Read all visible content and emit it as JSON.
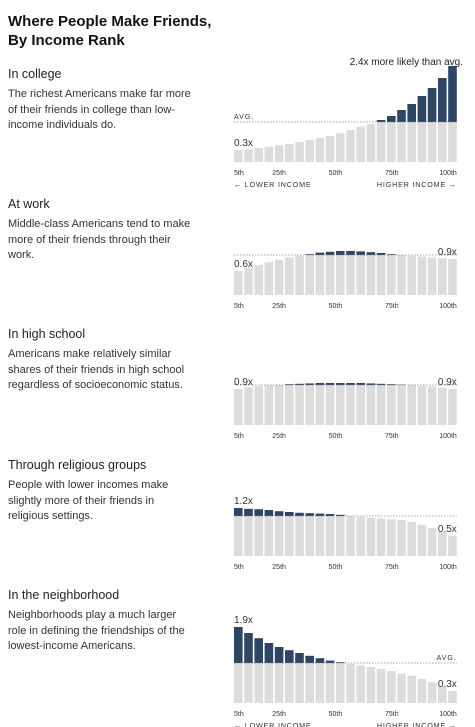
{
  "title_line1": "Where People Make Friends,",
  "title_line2": "By Income Rank",
  "top_annotation": "2.4x more likely than avg.",
  "colors": {
    "dark": "#2e4566",
    "light": "#dcdcdc",
    "dots": "#888888"
  },
  "x_axis": {
    "ticks": [
      {
        "pct": 5,
        "label": "5th"
      },
      {
        "pct": 25,
        "label": "25th"
      },
      {
        "pct": 50,
        "label": "50th"
      },
      {
        "pct": 75,
        "label": "75th"
      },
      {
        "pct": 100,
        "label": "100th"
      }
    ],
    "lower_label": "LOWER INCOME",
    "higher_label": "HIGHER INCOME",
    "left_arrow": "←",
    "right_arrow": "→"
  },
  "avg_label": "AVG.",
  "chart_data": [
    {
      "type": "bar",
      "title": "In college",
      "description": "The richest Americans make far more of their friends in college than low-income individuals do.",
      "x_unit": "income percentile",
      "ylabel": "ratio to average",
      "avg_line": 1,
      "show_avg_label": true,
      "show_bottom_labels": true,
      "annotations": [
        {
          "text": "0.3x",
          "position": "left"
        }
      ],
      "values": [
        0.3,
        0.32,
        0.35,
        0.38,
        0.42,
        0.45,
        0.5,
        0.55,
        0.6,
        0.65,
        0.72,
        0.8,
        0.88,
        0.95,
        1.05,
        1.15,
        1.3,
        1.45,
        1.65,
        1.85,
        2.1,
        2.4
      ]
    },
    {
      "type": "bar",
      "title": "At work",
      "description": "Middle-class Americans tend to make more of their friends through their work.",
      "x_unit": "income percentile",
      "ylabel": "ratio to average",
      "avg_line": 1,
      "show_avg_label": false,
      "show_bottom_labels": false,
      "annotations": [
        {
          "text": "0.6x",
          "position": "left"
        },
        {
          "text": "0.9x",
          "position": "right"
        }
      ],
      "values": [
        0.6,
        0.68,
        0.75,
        0.82,
        0.88,
        0.94,
        0.98,
        1.02,
        1.06,
        1.08,
        1.1,
        1.1,
        1.09,
        1.07,
        1.05,
        1.02,
        1.0,
        0.98,
        0.96,
        0.94,
        0.92,
        0.9
      ]
    },
    {
      "type": "bar",
      "title": "In high school",
      "description": "Americans make relatively similar shares of their friends in high school regardless of socioeconomic status.",
      "x_unit": "income percentile",
      "ylabel": "ratio to average",
      "avg_line": 1,
      "show_avg_label": false,
      "show_bottom_labels": false,
      "annotations": [
        {
          "text": "0.9x",
          "position": "left"
        },
        {
          "text": "0.9x",
          "position": "right"
        }
      ],
      "values": [
        0.9,
        0.94,
        0.97,
        0.99,
        1.0,
        1.02,
        1.03,
        1.04,
        1.05,
        1.05,
        1.05,
        1.05,
        1.05,
        1.04,
        1.03,
        1.02,
        1.01,
        1.0,
        0.98,
        0.96,
        0.93,
        0.9
      ]
    },
    {
      "type": "bar",
      "title": "Through religious groups",
      "description": "People with lower incomes make slightly more of their friends in religious settings.",
      "x_unit": "income percentile",
      "ylabel": "ratio to average",
      "avg_line": 1,
      "show_avg_label": false,
      "show_bottom_labels": false,
      "annotations": [
        {
          "text": "1.2x",
          "position": "left"
        },
        {
          "text": "0.5x",
          "position": "right"
        }
      ],
      "values": [
        1.2,
        1.18,
        1.17,
        1.15,
        1.12,
        1.1,
        1.08,
        1.07,
        1.06,
        1.05,
        1.03,
        1.0,
        0.98,
        0.96,
        0.94,
        0.92,
        0.9,
        0.85,
        0.78,
        0.7,
        0.6,
        0.5
      ]
    },
    {
      "type": "bar",
      "title": "In the neighborhood",
      "description": "Neighborhoods play a much larger role in defining the friendships of the lowest-income Americans.",
      "x_unit": "income percentile",
      "ylabel": "ratio to average",
      "avg_line": 1,
      "show_avg_label": true,
      "show_bottom_labels": true,
      "annotations": [
        {
          "text": "1.9x",
          "position": "left"
        },
        {
          "text": "0.3x",
          "position": "right"
        }
      ],
      "values": [
        1.9,
        1.75,
        1.62,
        1.5,
        1.4,
        1.32,
        1.25,
        1.18,
        1.12,
        1.06,
        1.02,
        0.98,
        0.94,
        0.9,
        0.85,
        0.8,
        0.74,
        0.68,
        0.6,
        0.52,
        0.42,
        0.3
      ]
    }
  ]
}
